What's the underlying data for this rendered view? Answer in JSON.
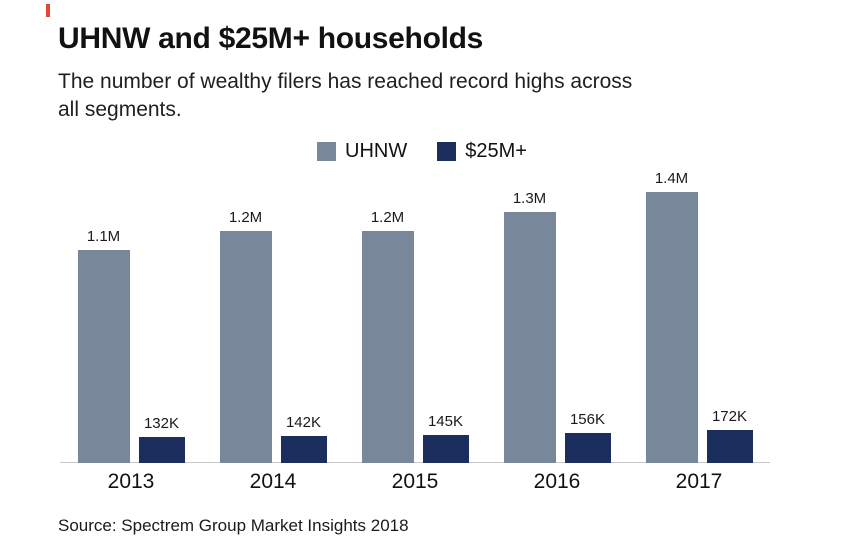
{
  "title": "UHNW and $25M+ households",
  "subtitle": "The number of wealthy filers has reached record highs across all segments.",
  "source": "Source: Spectrem Group Market Insights 2018",
  "colors": {
    "uhnw": "#78879a",
    "m25plus": "#1c2e5e",
    "axis": "#c9c9c9"
  },
  "chart_data": {
    "type": "bar",
    "title": "UHNW and $25M+ households",
    "subtitle": "The number of wealthy filers has reached record highs across all segments.",
    "categories": [
      "2013",
      "2014",
      "2015",
      "2016",
      "2017"
    ],
    "series": [
      {
        "name": "UHNW",
        "color": "#78879a",
        "values": [
          1100000,
          1200000,
          1200000,
          1300000,
          1400000
        ],
        "labels": [
          "1.1M",
          "1.2M",
          "1.2M",
          "1.3M",
          "1.4M"
        ]
      },
      {
        "name": "$25M+",
        "color": "#1c2e5e",
        "values": [
          132000,
          142000,
          145000,
          156000,
          172000
        ],
        "labels": [
          "132K",
          "142K",
          "145K",
          "156K",
          "172K"
        ]
      }
    ],
    "xlabel": "",
    "ylabel": "",
    "ylim": [
      0,
      1500000
    ],
    "grid": false,
    "legend_position": "top-center",
    "value_labels": true,
    "source": "Source: Spectrem Group Market Insights 2018"
  }
}
